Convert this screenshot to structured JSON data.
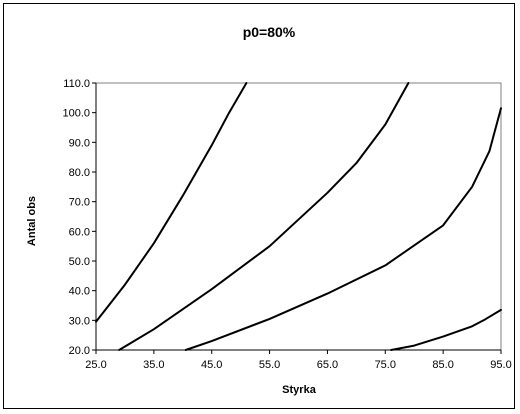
{
  "chart_data": {
    "type": "line",
    "title": "p0=80%",
    "xlabel": "Styrka",
    "ylabel": "Antal obs",
    "xlim": [
      25,
      95
    ],
    "ylim": [
      20,
      110
    ],
    "x_ticks": [
      "25.0",
      "35.0",
      "45.0",
      "55.0",
      "65.0",
      "75.0",
      "85.0",
      "95.0"
    ],
    "y_ticks": [
      "20.0",
      "30.0",
      "40.0",
      "50.0",
      "60.0",
      "70.0",
      "80.0",
      "90.0",
      "100.0",
      "110.0"
    ],
    "legend": "none",
    "grid": false,
    "line_color": "#000000",
    "series": [
      {
        "points": [
          [
            25,
            29.5
          ],
          [
            30,
            42
          ],
          [
            35,
            56
          ],
          [
            40,
            72
          ],
          [
            45,
            89
          ],
          [
            48,
            100
          ],
          [
            51,
            110
          ]
        ]
      },
      {
        "points": [
          [
            29,
            20
          ],
          [
            35,
            27
          ],
          [
            45,
            40.5
          ],
          [
            55,
            55
          ],
          [
            65,
            73
          ],
          [
            70,
            83
          ],
          [
            75,
            96
          ],
          [
            79,
            110
          ]
        ]
      },
      {
        "points": [
          [
            40.5,
            20
          ],
          [
            45,
            23
          ],
          [
            55,
            30.5
          ],
          [
            65,
            39
          ],
          [
            75,
            48.5
          ],
          [
            85,
            62
          ],
          [
            90,
            75
          ],
          [
            93,
            87
          ],
          [
            95,
            101.5
          ]
        ]
      },
      {
        "points": [
          [
            76,
            20
          ],
          [
            80,
            21.5
          ],
          [
            85,
            24.5
          ],
          [
            90,
            28
          ],
          [
            92,
            30
          ],
          [
            95,
            33.5
          ]
        ]
      }
    ]
  }
}
